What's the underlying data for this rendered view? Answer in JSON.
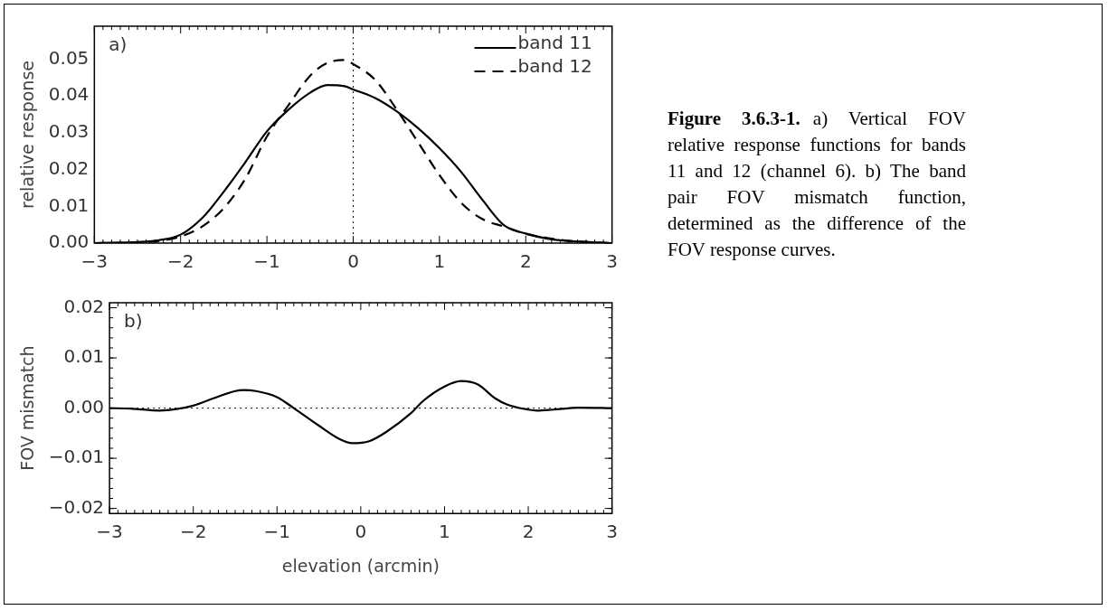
{
  "chart_data": [
    {
      "type": "line",
      "ylabel": "relative response",
      "annotations": [
        "a)"
      ],
      "xlim": [
        -3,
        3
      ],
      "xticks": [
        -3,
        -2,
        -1,
        0,
        1,
        2,
        3
      ],
      "ylim": [
        0,
        0.059
      ],
      "yticks": [
        {
          "value": 0,
          "label": "0.00"
        },
        0.01,
        0.02,
        0.03,
        0.04,
        0.05
      ],
      "legend": "top right",
      "marker": "none",
      "grid": false,
      "x": [
        -3,
        -2.5,
        -2.25,
        -2,
        -1.75,
        -1.5,
        -1.25,
        -1,
        -0.75,
        -0.5,
        -0.3,
        -0.1,
        0,
        0.25,
        0.5,
        0.75,
        1,
        1.25,
        1.5,
        1.75,
        2,
        2.25,
        2.5,
        3
      ],
      "series": [
        {
          "name": "band 11",
          "color": "#000000",
          "line_style": "solid",
          "values": [
            0,
            0.0003,
            0.0008,
            0.0023,
            0.0068,
            0.014,
            0.022,
            0.0304,
            0.0363,
            0.0409,
            0.043,
            0.0427,
            0.0418,
            0.0395,
            0.0359,
            0.0313,
            0.0258,
            0.0194,
            0.0117,
            0.0048,
            0.0026,
            0.0012,
            0.0006,
            0
          ]
        },
        {
          "name": "band 12",
          "color": "#000000",
          "line_style": "dashed",
          "values": [
            0,
            0.0002,
            0.0006,
            0.0018,
            0.0045,
            0.0095,
            0.0175,
            0.029,
            0.0375,
            0.0455,
            0.049,
            0.0498,
            0.0487,
            0.0445,
            0.0365,
            0.0275,
            0.0185,
            0.011,
            0.0065,
            0.0045,
            0.0025,
            0.0014,
            0.0006,
            0
          ]
        }
      ],
      "ref_lines": [
        {
          "axis": "x",
          "value": 0,
          "color": "#000000",
          "line_style": "dotted"
        }
      ]
    },
    {
      "type": "line",
      "xlabel": "elevation (arcmin)",
      "ylabel": "FOV mismatch",
      "annotations": [
        "b)"
      ],
      "xlim": [
        -3,
        3
      ],
      "xticks": [
        -3,
        -2,
        -1,
        0,
        1,
        2,
        3
      ],
      "ylim": [
        -0.021,
        0.021
      ],
      "yticks": [
        -0.02,
        -0.01,
        {
          "value": 0,
          "label": "0.00"
        },
        0.01,
        0.02
      ],
      "marker": "none",
      "grid": false,
      "x": [
        -3,
        -2.75,
        -2.4,
        -2.2,
        -2,
        -1.75,
        -1.5,
        -1.4,
        -1.25,
        -1,
        -0.8,
        -0.5,
        -0.25,
        -0.1,
        0.1,
        0.3,
        0.6,
        0.75,
        1,
        1.2,
        1.4,
        1.6,
        1.75,
        2,
        2.1,
        2.3,
        2.6,
        3
      ],
      "series": [
        {
          "color": "#000000",
          "line_style": "solid",
          "values": [
            0,
            -0.0001,
            -0.0005,
            -0.0002,
            0.0005,
            0.002,
            0.0034,
            0.0036,
            0.0034,
            0.0022,
            0,
            -0.0035,
            -0.0062,
            -0.007,
            -0.0066,
            -0.0048,
            -0.001,
            0.0015,
            0.0043,
            0.0054,
            0.0047,
            0.002,
            0.0007,
            -0.0003,
            -0.0005,
            -0.0003,
            0.0001,
            0
          ]
        }
      ],
      "ref_lines": [
        {
          "axis": "y",
          "value": 0,
          "color": "#000000",
          "line_style": "dotted"
        }
      ]
    },
    {
      "type": "other",
      "annotations": [
        "Figure 3.6.3-1.",
        "a) Vertical FOV relative response functions for bands 11 and 12 (channel 6).  b) The band pair FOV mismatch function, determined as the difference of the FOV response curves."
      ]
    }
  ]
}
